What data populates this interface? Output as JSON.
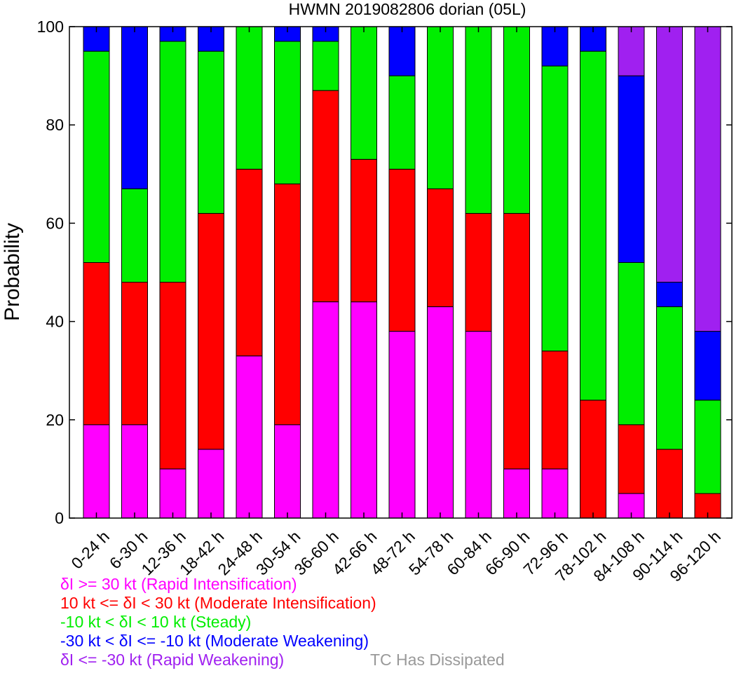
{
  "chart_data": {
    "type": "bar",
    "stacked": true,
    "title": "HWMN 2019082806 dorian (05L)",
    "ylabel": "Probability",
    "xlabel": "",
    "ylim": [
      0,
      100
    ],
    "yticks": [
      "0",
      "20",
      "40",
      "60",
      "80",
      "100"
    ],
    "categories": [
      "0-24 h",
      "6-30 h",
      "12-36 h",
      "18-42 h",
      "24-48 h",
      "30-54 h",
      "36-60 h",
      "42-66 h",
      "48-72 h",
      "54-78 h",
      "60-84 h",
      "66-90 h",
      "72-96 h",
      "78-102 h",
      "84-108 h",
      "90-114 h",
      "96-120 h"
    ],
    "series": [
      {
        "name": "δI >= 30 kt (Rapid Intensification)",
        "color": "#ff00ff",
        "values": [
          19,
          19,
          10,
          14,
          33,
          19,
          44,
          44,
          38,
          43,
          38,
          10,
          10,
          0,
          5,
          0,
          0
        ]
      },
      {
        "name": "10 kt <= δI < 30 kt (Moderate Intensification)",
        "color": "#ff0000",
        "values": [
          33,
          29,
          38,
          48,
          38,
          49,
          43,
          29,
          33,
          24,
          24,
          52,
          24,
          24,
          14,
          14,
          5
        ]
      },
      {
        "name": "-10 kt < δI < 10 kt (Steady)",
        "color": "#00ee00",
        "values": [
          43,
          19,
          49,
          33,
          29,
          29,
          10,
          27,
          19,
          33,
          38,
          38,
          58,
          71,
          33,
          29,
          19
        ]
      },
      {
        "name": "-30 kt < δI <= -10 kt (Moderate Weakening)",
        "color": "#0000ff",
        "values": [
          5,
          33,
          3,
          5,
          0,
          3,
          3,
          0,
          10,
          0,
          0,
          0,
          8,
          5,
          38,
          5,
          14
        ]
      },
      {
        "name": "δI <= -30 kt (Rapid Weakening)",
        "color": "#a020f0",
        "values": [
          0,
          0,
          0,
          0,
          0,
          0,
          0,
          0,
          0,
          0,
          0,
          0,
          0,
          0,
          10,
          52,
          62
        ]
      }
    ],
    "extra_legend": {
      "label": "TC Has Dissipated",
      "color": "#999999"
    },
    "grid": false
  }
}
